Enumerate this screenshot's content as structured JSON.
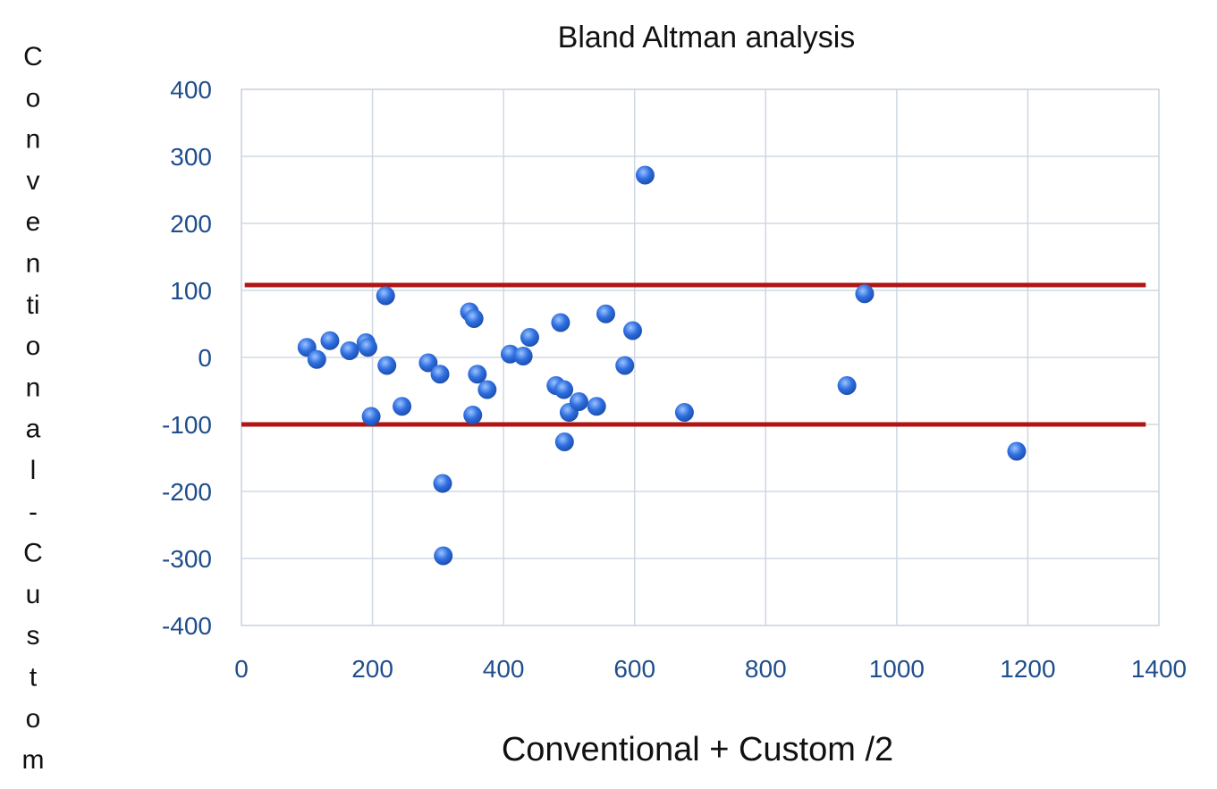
{
  "chart_data": {
    "type": "scatter",
    "title": "Bland Altman analysis",
    "xlabel": "Conventional + Custom /2",
    "ylabel": "Conventional-Custom",
    "ylabel_chars": [
      "C",
      "o",
      "n",
      "v",
      "e",
      "n",
      "ti",
      "o",
      "n",
      "a",
      "l",
      "-",
      "C",
      "u",
      "s",
      "t",
      "o",
      "m"
    ],
    "xlim": [
      0,
      1400
    ],
    "ylim": [
      -400,
      400
    ],
    "x_ticks": [
      0,
      200,
      400,
      600,
      800,
      1000,
      1200,
      1400
    ],
    "y_ticks": [
      400,
      300,
      200,
      100,
      0,
      -100,
      -200,
      -300,
      -400
    ],
    "grid": true,
    "point_color": "#2f6fe0",
    "line_color": "#b01414",
    "limit_lines": [
      {
        "y": 108,
        "x_start": 5,
        "x_end": 1380
      },
      {
        "y": -100,
        "x_start": 0,
        "x_end": 1380
      }
    ],
    "points": [
      {
        "x": 100,
        "y": 15
      },
      {
        "x": 115,
        "y": -3
      },
      {
        "x": 135,
        "y": 25
      },
      {
        "x": 165,
        "y": 10
      },
      {
        "x": 190,
        "y": 22
      },
      {
        "x": 193,
        "y": 15
      },
      {
        "x": 198,
        "y": -88
      },
      {
        "x": 220,
        "y": 92
      },
      {
        "x": 222,
        "y": -12
      },
      {
        "x": 245,
        "y": -73
      },
      {
        "x": 285,
        "y": -8
      },
      {
        "x": 303,
        "y": -25
      },
      {
        "x": 307,
        "y": -188
      },
      {
        "x": 308,
        "y": -296
      },
      {
        "x": 348,
        "y": 68
      },
      {
        "x": 355,
        "y": 58
      },
      {
        "x": 353,
        "y": -86
      },
      {
        "x": 360,
        "y": -25
      },
      {
        "x": 375,
        "y": -48
      },
      {
        "x": 410,
        "y": 5
      },
      {
        "x": 430,
        "y": 2
      },
      {
        "x": 440,
        "y": 30
      },
      {
        "x": 480,
        "y": -42
      },
      {
        "x": 487,
        "y": 52
      },
      {
        "x": 492,
        "y": -48
      },
      {
        "x": 493,
        "y": -126
      },
      {
        "x": 500,
        "y": -82
      },
      {
        "x": 515,
        "y": -66
      },
      {
        "x": 542,
        "y": -73
      },
      {
        "x": 556,
        "y": 65
      },
      {
        "x": 585,
        "y": -12
      },
      {
        "x": 597,
        "y": 40
      },
      {
        "x": 616,
        "y": 272
      },
      {
        "x": 676,
        "y": -82
      },
      {
        "x": 924,
        "y": -42
      },
      {
        "x": 951,
        "y": 95
      },
      {
        "x": 1183,
        "y": -140
      }
    ]
  }
}
